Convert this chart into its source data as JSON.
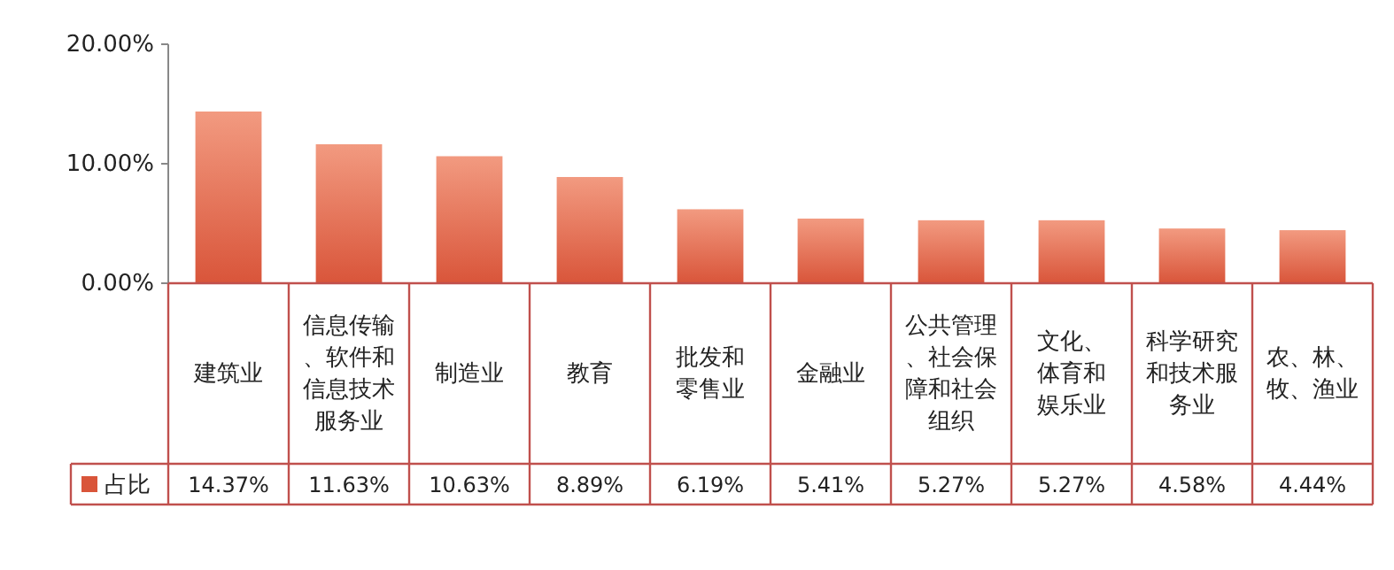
{
  "chart_data": {
    "type": "bar",
    "categories": [
      "建筑业",
      "信息传输、软件和信息技术服务业",
      "制造业",
      "教育",
      "批发和零售业",
      "金融业",
      "公共管理、社会保障和社会组织",
      "文化、体育和娱乐业",
      "科学研究和技术服务业",
      "农、林、牧、渔业"
    ],
    "series": [
      {
        "name": "占比",
        "color": "#d9553a",
        "values": [
          14.37,
          11.63,
          10.63,
          8.89,
          6.19,
          5.41,
          5.27,
          5.27,
          4.58,
          4.44
        ],
        "value_labels": [
          "14.37%",
          "11.63%",
          "10.63%",
          "8.89%",
          "6.19%",
          "5.41%",
          "5.27%",
          "5.27%",
          "4.58%",
          "4.44%"
        ]
      }
    ],
    "ylim": [
      0,
      20
    ],
    "yticks": [
      {
        "value": 0,
        "label": "0.00%"
      },
      {
        "value": 10,
        "label": "10.00%"
      },
      {
        "value": 20,
        "label": "20.00%"
      }
    ],
    "grid": false
  }
}
